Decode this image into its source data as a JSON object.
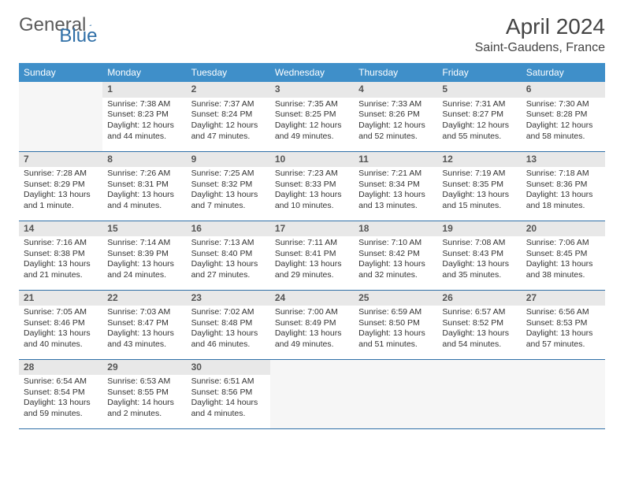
{
  "brand": {
    "part1": "General",
    "part2": "Blue"
  },
  "title": "April 2024",
  "location": "Saint-Gaudens, France",
  "colors": {
    "header_bg": "#3f8fc9",
    "header_text": "#ffffff",
    "daynum_bg": "#e8e8e8",
    "row_border": "#2f6fa7",
    "brand_gray": "#5a5a5a",
    "brand_blue": "#2f6fa7"
  },
  "weekdays": [
    "Sunday",
    "Monday",
    "Tuesday",
    "Wednesday",
    "Thursday",
    "Friday",
    "Saturday"
  ],
  "grid": {
    "first_weekday_index": 1,
    "days_in_month": 30
  },
  "days": {
    "1": {
      "sunrise": "Sunrise: 7:38 AM",
      "sunset": "Sunset: 8:23 PM",
      "daylight": "Daylight: 12 hours and 44 minutes."
    },
    "2": {
      "sunrise": "Sunrise: 7:37 AM",
      "sunset": "Sunset: 8:24 PM",
      "daylight": "Daylight: 12 hours and 47 minutes."
    },
    "3": {
      "sunrise": "Sunrise: 7:35 AM",
      "sunset": "Sunset: 8:25 PM",
      "daylight": "Daylight: 12 hours and 49 minutes."
    },
    "4": {
      "sunrise": "Sunrise: 7:33 AM",
      "sunset": "Sunset: 8:26 PM",
      "daylight": "Daylight: 12 hours and 52 minutes."
    },
    "5": {
      "sunrise": "Sunrise: 7:31 AM",
      "sunset": "Sunset: 8:27 PM",
      "daylight": "Daylight: 12 hours and 55 minutes."
    },
    "6": {
      "sunrise": "Sunrise: 7:30 AM",
      "sunset": "Sunset: 8:28 PM",
      "daylight": "Daylight: 12 hours and 58 minutes."
    },
    "7": {
      "sunrise": "Sunrise: 7:28 AM",
      "sunset": "Sunset: 8:29 PM",
      "daylight": "Daylight: 13 hours and 1 minute."
    },
    "8": {
      "sunrise": "Sunrise: 7:26 AM",
      "sunset": "Sunset: 8:31 PM",
      "daylight": "Daylight: 13 hours and 4 minutes."
    },
    "9": {
      "sunrise": "Sunrise: 7:25 AM",
      "sunset": "Sunset: 8:32 PM",
      "daylight": "Daylight: 13 hours and 7 minutes."
    },
    "10": {
      "sunrise": "Sunrise: 7:23 AM",
      "sunset": "Sunset: 8:33 PM",
      "daylight": "Daylight: 13 hours and 10 minutes."
    },
    "11": {
      "sunrise": "Sunrise: 7:21 AM",
      "sunset": "Sunset: 8:34 PM",
      "daylight": "Daylight: 13 hours and 13 minutes."
    },
    "12": {
      "sunrise": "Sunrise: 7:19 AM",
      "sunset": "Sunset: 8:35 PM",
      "daylight": "Daylight: 13 hours and 15 minutes."
    },
    "13": {
      "sunrise": "Sunrise: 7:18 AM",
      "sunset": "Sunset: 8:36 PM",
      "daylight": "Daylight: 13 hours and 18 minutes."
    },
    "14": {
      "sunrise": "Sunrise: 7:16 AM",
      "sunset": "Sunset: 8:38 PM",
      "daylight": "Daylight: 13 hours and 21 minutes."
    },
    "15": {
      "sunrise": "Sunrise: 7:14 AM",
      "sunset": "Sunset: 8:39 PM",
      "daylight": "Daylight: 13 hours and 24 minutes."
    },
    "16": {
      "sunrise": "Sunrise: 7:13 AM",
      "sunset": "Sunset: 8:40 PM",
      "daylight": "Daylight: 13 hours and 27 minutes."
    },
    "17": {
      "sunrise": "Sunrise: 7:11 AM",
      "sunset": "Sunset: 8:41 PM",
      "daylight": "Daylight: 13 hours and 29 minutes."
    },
    "18": {
      "sunrise": "Sunrise: 7:10 AM",
      "sunset": "Sunset: 8:42 PM",
      "daylight": "Daylight: 13 hours and 32 minutes."
    },
    "19": {
      "sunrise": "Sunrise: 7:08 AM",
      "sunset": "Sunset: 8:43 PM",
      "daylight": "Daylight: 13 hours and 35 minutes."
    },
    "20": {
      "sunrise": "Sunrise: 7:06 AM",
      "sunset": "Sunset: 8:45 PM",
      "daylight": "Daylight: 13 hours and 38 minutes."
    },
    "21": {
      "sunrise": "Sunrise: 7:05 AM",
      "sunset": "Sunset: 8:46 PM",
      "daylight": "Daylight: 13 hours and 40 minutes."
    },
    "22": {
      "sunrise": "Sunrise: 7:03 AM",
      "sunset": "Sunset: 8:47 PM",
      "daylight": "Daylight: 13 hours and 43 minutes."
    },
    "23": {
      "sunrise": "Sunrise: 7:02 AM",
      "sunset": "Sunset: 8:48 PM",
      "daylight": "Daylight: 13 hours and 46 minutes."
    },
    "24": {
      "sunrise": "Sunrise: 7:00 AM",
      "sunset": "Sunset: 8:49 PM",
      "daylight": "Daylight: 13 hours and 49 minutes."
    },
    "25": {
      "sunrise": "Sunrise: 6:59 AM",
      "sunset": "Sunset: 8:50 PM",
      "daylight": "Daylight: 13 hours and 51 minutes."
    },
    "26": {
      "sunrise": "Sunrise: 6:57 AM",
      "sunset": "Sunset: 8:52 PM",
      "daylight": "Daylight: 13 hours and 54 minutes."
    },
    "27": {
      "sunrise": "Sunrise: 6:56 AM",
      "sunset": "Sunset: 8:53 PM",
      "daylight": "Daylight: 13 hours and 57 minutes."
    },
    "28": {
      "sunrise": "Sunrise: 6:54 AM",
      "sunset": "Sunset: 8:54 PM",
      "daylight": "Daylight: 13 hours and 59 minutes."
    },
    "29": {
      "sunrise": "Sunrise: 6:53 AM",
      "sunset": "Sunset: 8:55 PM",
      "daylight": "Daylight: 14 hours and 2 minutes."
    },
    "30": {
      "sunrise": "Sunrise: 6:51 AM",
      "sunset": "Sunset: 8:56 PM",
      "daylight": "Daylight: 14 hours and 4 minutes."
    }
  }
}
